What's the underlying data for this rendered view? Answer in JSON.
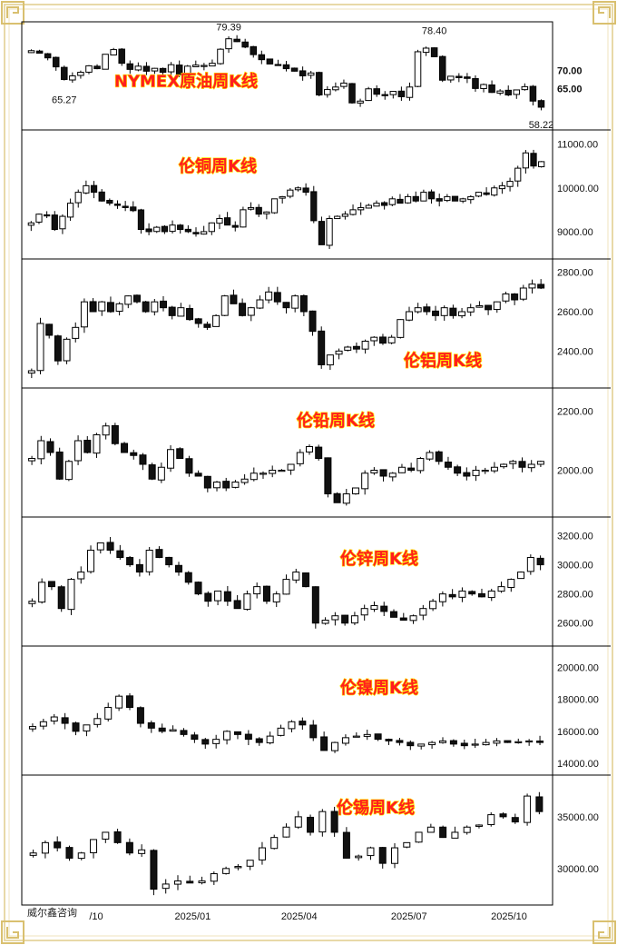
{
  "watermark": "威尔鑫咨询",
  "x_axis": {
    "labels": [
      {
        "text": "/10",
        "pos": 0.0
      },
      {
        "text": "2025/01",
        "pos": 0.263
      },
      {
        "text": "2025/04",
        "pos": 0.511
      },
      {
        "text": "2025/07",
        "pos": 0.767
      },
      {
        "text": "2025/10",
        "pos": 1.0
      }
    ]
  },
  "colors": {
    "frame_gold": "#e2cc88",
    "title_fill": "#ff1e1e",
    "title_stroke": "#ffe600",
    "candle_line": "#000000",
    "up_fill": "#ffffff",
    "down_fill": "#111111"
  },
  "chart_data": [
    {
      "type": "candlestick",
      "title": "NYMEX原油周K线",
      "title_pos": "center",
      "ylim": [
        55,
        82
      ],
      "yticks": [
        {
          "v": 70,
          "label": "70.00"
        },
        {
          "v": 65,
          "label": "65.00"
        }
      ],
      "annotations": [
        {
          "text": "65.27",
          "v": 65.27,
          "i": 4,
          "where": "below"
        },
        {
          "text": "79.39",
          "v": 79.39,
          "i": 24,
          "where": "above"
        },
        {
          "text": "78.40",
          "v": 78.4,
          "i": 49,
          "where": "above"
        },
        {
          "text": "58.22",
          "v": 58.22,
          "i": 62,
          "where": "below"
        }
      ],
      "closes": [
        75.5,
        74.8,
        73.5,
        71.0,
        67.5,
        68.5,
        69.5,
        71.3,
        70.5,
        74.5,
        75.8,
        72.0,
        70.3,
        71.2,
        69.8,
        70.6,
        69.5,
        71.6,
        68.8,
        71.2,
        71.5,
        71.4,
        72.0,
        75.9,
        78.8,
        78.0,
        76.5,
        74.4,
        73.0,
        71.8,
        71.6,
        70.5,
        69.8,
        68.5,
        69.3,
        63.2,
        64.7,
        65.4,
        66.5,
        61.0,
        61.5,
        64.9,
        63.4,
        63.2,
        64.2,
        62.7,
        65.4,
        75.2,
        76.2,
        73.8,
        67.3,
        68.4,
        68.0,
        67.8,
        65.0,
        66.1,
        63.9,
        64.3,
        63.2,
        64.6,
        65.5,
        61.5,
        59.8
      ]
    },
    {
      "type": "candlestick",
      "title": "伦铜周K线",
      "title_pos": "top-left",
      "ylim": [
        8500,
        11200
      ],
      "yticks": [
        {
          "v": 11000,
          "label": "11000.00"
        },
        {
          "v": 10000,
          "label": "10000.00"
        },
        {
          "v": 9000,
          "label": "9000.00"
        }
      ],
      "closes": [
        9200,
        9400,
        9380,
        9050,
        9350,
        9650,
        9900,
        10050,
        9900,
        9700,
        9650,
        9600,
        9550,
        9480,
        9050,
        9000,
        9100,
        9000,
        9150,
        9050,
        9000,
        8950,
        9000,
        9200,
        9300,
        9150,
        9100,
        9500,
        9550,
        9400,
        9450,
        9750,
        9800,
        9950,
        10000,
        9900,
        9250,
        8700,
        9300,
        9350,
        9400,
        9500,
        9550,
        9600,
        9650,
        9600,
        9750,
        9650,
        9800,
        9700,
        9900,
        9750,
        9700,
        9800,
        9700,
        9750,
        9800,
        9900,
        9850,
        10000,
        10050,
        10150,
        10450,
        10800,
        10500,
        10600
      ]
    },
    {
      "type": "candlestick",
      "title": "伦铝周K线",
      "title_pos": "bottom-right",
      "ylim": [
        2240,
        2840
      ],
      "yticks": [
        {
          "v": 2800,
          "label": "2800.00"
        },
        {
          "v": 2600,
          "label": "2600.00"
        },
        {
          "v": 2400,
          "label": "2400.00"
        }
      ],
      "closes": [
        2300,
        2540,
        2480,
        2350,
        2460,
        2520,
        2650,
        2600,
        2650,
        2600,
        2640,
        2680,
        2650,
        2600,
        2650,
        2620,
        2580,
        2620,
        2560,
        2540,
        2520,
        2580,
        2680,
        2640,
        2580,
        2620,
        2660,
        2700,
        2650,
        2620,
        2680,
        2600,
        2500,
        2330,
        2380,
        2400,
        2420,
        2410,
        2450,
        2470,
        2440,
        2470,
        2560,
        2600,
        2620,
        2600,
        2580,
        2620,
        2580,
        2600,
        2620,
        2630,
        2610,
        2650,
        2690,
        2660,
        2720,
        2740,
        2720
      ]
    },
    {
      "type": "candlestick",
      "title": "伦铅周K线",
      "title_pos": "top-center",
      "ylim": [
        1860,
        2260
      ],
      "yticks": [
        {
          "v": 2200,
          "label": "2200.00"
        },
        {
          "v": 2000,
          "label": "2000.00"
        }
      ],
      "closes": [
        2040,
        2100,
        2060,
        1970,
        2030,
        2100,
        2060,
        2120,
        2150,
        2090,
        2060,
        2050,
        2020,
        1970,
        2010,
        2070,
        2040,
        1990,
        1980,
        1940,
        1960,
        1940,
        1960,
        1970,
        1990,
        1990,
        2000,
        2000,
        2020,
        2060,
        2080,
        2040,
        1920,
        1890,
        1920,
        1940,
        1990,
        2000,
        1980,
        1990,
        2010,
        2000,
        2040,
        2060,
        2030,
        2010,
        1990,
        1980,
        2000,
        2000,
        2010,
        2020,
        2030,
        2010,
        2020,
        2030
      ]
    },
    {
      "type": "candlestick",
      "title": "伦锌周K线",
      "title_pos": "top-right",
      "ylim": [
        2480,
        3290
      ],
      "yticks": [
        {
          "v": 3200,
          "label": "3200.00"
        },
        {
          "v": 3000,
          "label": "3000.00"
        },
        {
          "v": 2800,
          "label": "2800.00"
        },
        {
          "v": 2600,
          "label": "2600.00"
        }
      ],
      "closes": [
        2750,
        2880,
        2850,
        2700,
        2900,
        2950,
        3100,
        3150,
        3100,
        3050,
        3000,
        2950,
        3100,
        3050,
        3000,
        2950,
        2880,
        2800,
        2750,
        2820,
        2750,
        2700,
        2800,
        2850,
        2750,
        2800,
        2900,
        2950,
        2850,
        2600,
        2620,
        2650,
        2600,
        2650,
        2700,
        2720,
        2680,
        2640,
        2620,
        2650,
        2700,
        2750,
        2800,
        2780,
        2820,
        2800,
        2780,
        2820,
        2850,
        2900,
        2950,
        3050,
        3000
      ]
    },
    {
      "type": "candlestick",
      "title": "伦镍周K线",
      "title_pos": "top-right",
      "ylim": [
        13600,
        21000
      ],
      "yticks": [
        {
          "v": 20000,
          "label": "20000.00"
        },
        {
          "v": 18000,
          "label": "18000.00"
        },
        {
          "v": 16000,
          "label": "16000.00"
        },
        {
          "v": 14000,
          "label": "14000.00"
        }
      ],
      "closes": [
        16300,
        16600,
        16900,
        16500,
        16000,
        16400,
        16800,
        17500,
        18200,
        17500,
        16500,
        16200,
        16000,
        16100,
        15800,
        15500,
        15200,
        15500,
        16000,
        15800,
        15500,
        15300,
        15700,
        16200,
        16600,
        16400,
        15600,
        14800,
        15300,
        15600,
        15700,
        15800,
        15500,
        15400,
        15300,
        15100,
        15200,
        15300,
        15400,
        15200,
        15100,
        15200,
        15300,
        15400,
        15300,
        15350,
        15400,
        15300
      ]
    },
    {
      "type": "candlestick",
      "title": "伦锡周K线",
      "title_pos": "top-right",
      "ylim": [
        27000,
        38500
      ],
      "yticks": [
        {
          "v": 35000,
          "label": "35000.00"
        },
        {
          "v": 30000,
          "label": "30000.00"
        }
      ],
      "closes": [
        31500,
        32500,
        32000,
        31000,
        31500,
        32800,
        33500,
        32500,
        31500,
        31800,
        28000,
        28500,
        28800,
        28600,
        28800,
        29500,
        30000,
        30200,
        30800,
        32000,
        33000,
        34000,
        35000,
        33500,
        35500,
        33500,
        31000,
        31200,
        32000,
        30500,
        32000,
        32500,
        33500,
        34000,
        33000,
        33500,
        34000,
        34200,
        35200,
        35000,
        34500,
        37000,
        35500
      ]
    }
  ]
}
